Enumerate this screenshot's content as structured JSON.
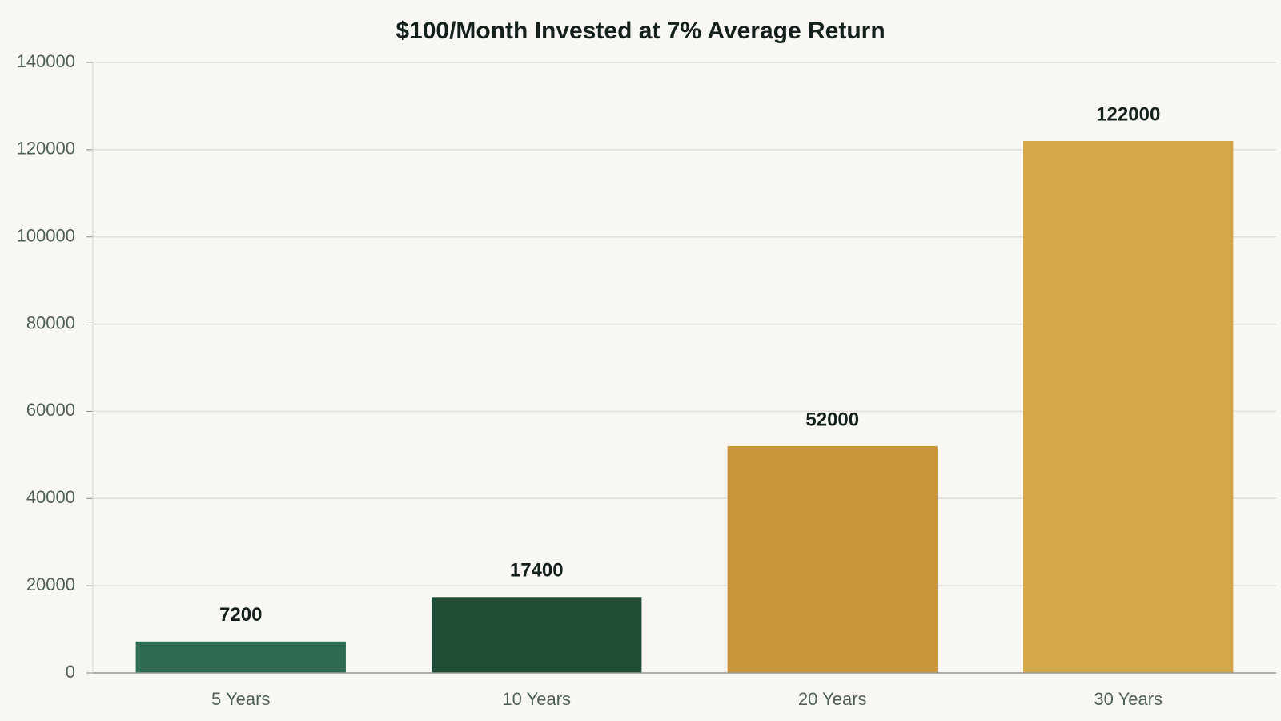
{
  "chart_data": {
    "type": "bar",
    "title": "$100/Month Invested at 7% Average Return",
    "categories": [
      "5 Years",
      "10 Years",
      "20 Years",
      "30 Years"
    ],
    "values": [
      7200,
      17400,
      52000,
      122000
    ],
    "colors": [
      "#2e6b52",
      "#1f4d36",
      "#c9943a",
      "#d4a84a"
    ],
    "ylim": [
      0,
      140000
    ],
    "yticks": [
      0,
      20000,
      40000,
      60000,
      80000,
      100000,
      120000,
      140000
    ],
    "grid": true
  }
}
